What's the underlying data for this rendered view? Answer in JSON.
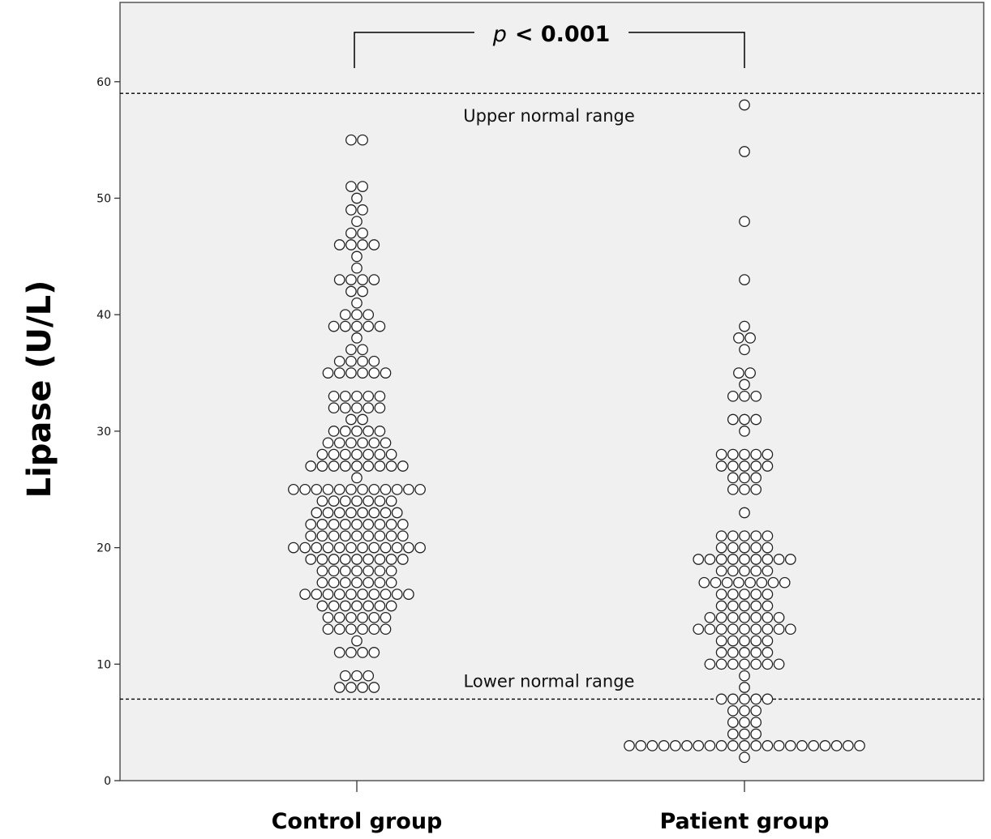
{
  "chart_data": {
    "type": "scatter",
    "subtype": "dot-plot",
    "ylabel": "Lipase (U/L)",
    "xlabel": "",
    "ylim": [
      0,
      65
    ],
    "yticks": [
      0,
      10,
      20,
      30,
      40,
      50,
      60
    ],
    "categories": [
      "Control group",
      "Patient group"
    ],
    "grid": false,
    "background_color": "#f0f0f0",
    "marker": "open-circle",
    "reference_lines": [
      {
        "value": 59,
        "label": "Upper normal range",
        "style": "dashed"
      },
      {
        "value": 7,
        "label": "Lower normal range",
        "style": "dashed"
      }
    ],
    "annotation": {
      "p_symbol": "p",
      "p_rest": "< 0.001"
    },
    "series": [
      {
        "category": "Control group",
        "counts": [
          [
            8,
            4
          ],
          [
            9,
            3
          ],
          [
            11,
            4
          ],
          [
            12,
            1
          ],
          [
            13,
            6
          ],
          [
            14,
            6
          ],
          [
            15,
            7
          ],
          [
            16,
            10
          ],
          [
            17,
            7
          ],
          [
            18,
            7
          ],
          [
            19,
            9
          ],
          [
            20,
            12
          ],
          [
            21,
            9
          ],
          [
            22,
            9
          ],
          [
            23,
            8
          ],
          [
            24,
            7
          ],
          [
            25,
            12
          ],
          [
            26,
            1
          ],
          [
            27,
            9
          ],
          [
            28,
            7
          ],
          [
            29,
            6
          ],
          [
            30,
            5
          ],
          [
            31,
            2
          ],
          [
            32,
            5
          ],
          [
            33,
            5
          ],
          [
            35,
            6
          ],
          [
            36,
            4
          ],
          [
            37,
            2
          ],
          [
            38,
            1
          ],
          [
            39,
            5
          ],
          [
            40,
            3
          ],
          [
            41,
            1
          ],
          [
            42,
            2
          ],
          [
            43,
            4
          ],
          [
            44,
            1
          ],
          [
            45,
            1
          ],
          [
            46,
            4
          ],
          [
            47,
            2
          ],
          [
            48,
            1
          ],
          [
            49,
            2
          ],
          [
            50,
            1
          ],
          [
            51,
            2
          ],
          [
            55,
            2
          ]
        ]
      },
      {
        "category": "Patient group",
        "counts": [
          [
            2,
            1
          ],
          [
            3,
            21
          ],
          [
            4,
            3
          ],
          [
            5,
            3
          ],
          [
            6,
            3
          ],
          [
            7,
            5
          ],
          [
            8,
            1
          ],
          [
            9,
            1
          ],
          [
            10,
            7
          ],
          [
            11,
            5
          ],
          [
            12,
            5
          ],
          [
            13,
            9
          ],
          [
            14,
            7
          ],
          [
            15,
            5
          ],
          [
            16,
            5
          ],
          [
            17,
            8
          ],
          [
            18,
            5
          ],
          [
            19,
            9
          ],
          [
            20,
            5
          ],
          [
            21,
            5
          ],
          [
            23,
            1
          ],
          [
            25,
            3
          ],
          [
            26,
            3
          ],
          [
            27,
            5
          ],
          [
            28,
            5
          ],
          [
            30,
            1
          ],
          [
            31,
            3
          ],
          [
            33,
            3
          ],
          [
            34,
            1
          ],
          [
            35,
            2
          ],
          [
            37,
            1
          ],
          [
            38,
            2
          ],
          [
            39,
            1
          ],
          [
            43,
            1
          ],
          [
            48,
            1
          ],
          [
            54,
            1
          ],
          [
            58,
            1
          ]
        ]
      }
    ]
  }
}
